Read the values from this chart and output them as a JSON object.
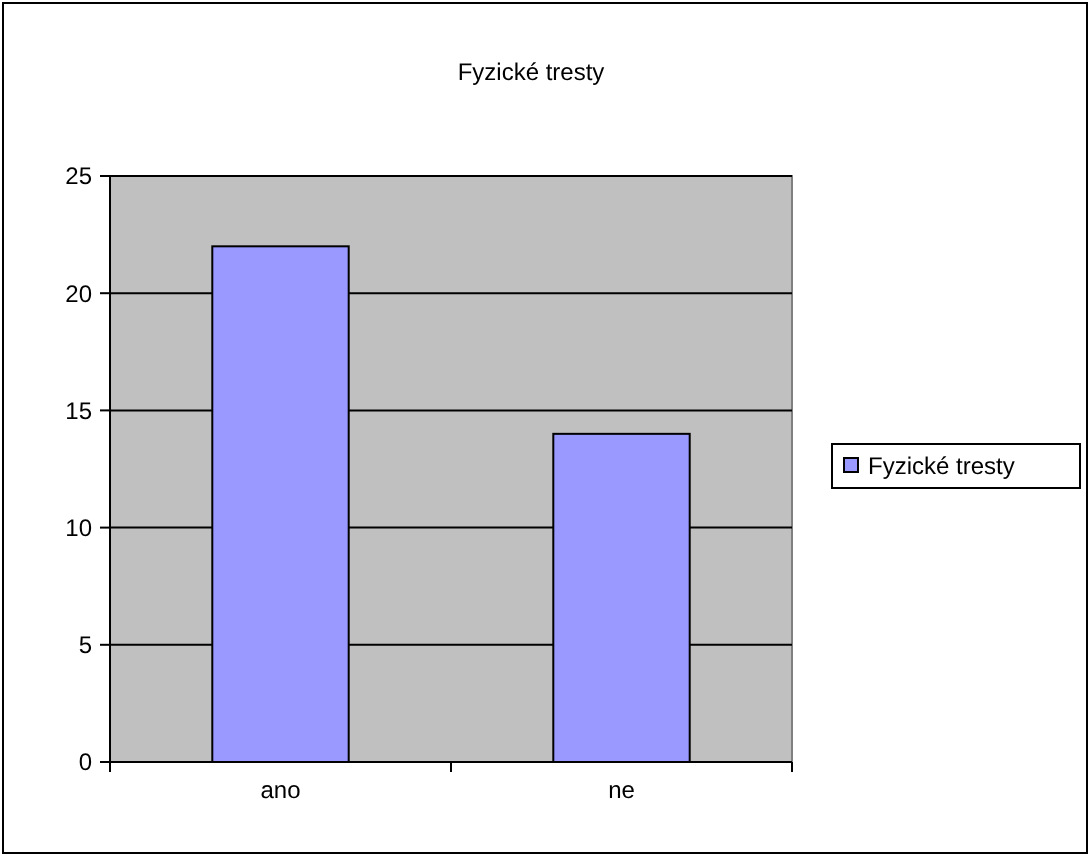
{
  "chart_data": {
    "type": "bar",
    "title": "Fyzické tresty",
    "categories": [
      "ano",
      "ne"
    ],
    "series": [
      {
        "name": "Fyzické tresty",
        "color": "#9999ff",
        "values": [
          22,
          14
        ]
      }
    ],
    "ylim": [
      0,
      25
    ],
    "yticks": [
      0,
      5,
      10,
      15,
      20,
      25
    ],
    "grid": "y",
    "legend": "right"
  }
}
